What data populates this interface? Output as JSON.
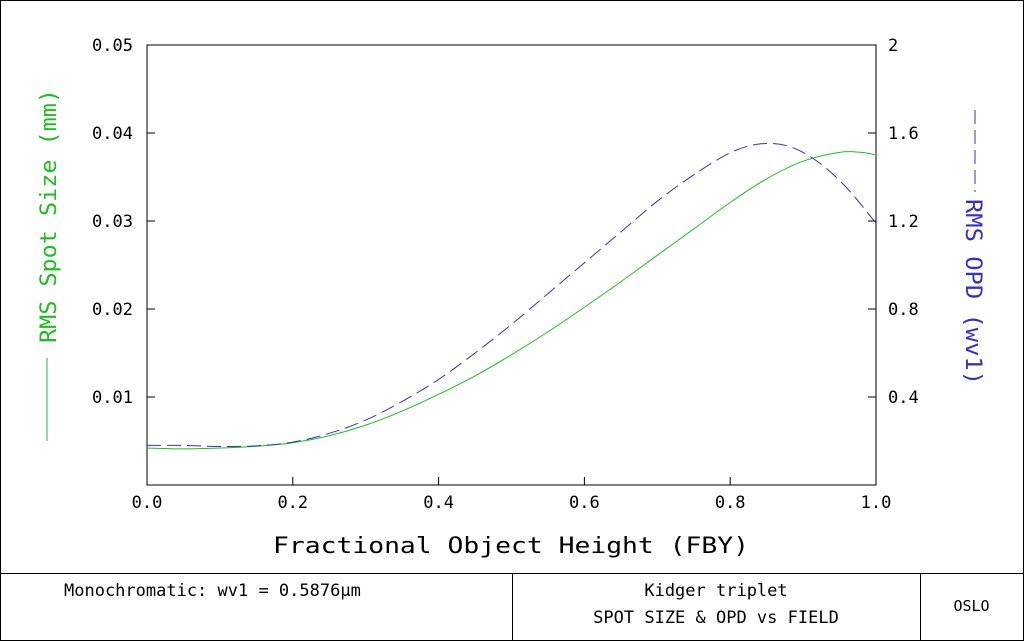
{
  "chart_data": {
    "type": "line",
    "title": "",
    "xlabel": "Fractional Object Height (FBY)",
    "xlim": [
      0.0,
      1.0
    ],
    "x_ticks": [
      "0.0",
      "0.2",
      "0.4",
      "0.6",
      "0.8",
      "1.0"
    ],
    "ylabel_left": "RMS Spot Size (mm)",
    "ylim_left": [
      0,
      0.05
    ],
    "y_ticks_left": [
      "0.01",
      "0.02",
      "0.03",
      "0.04",
      "0.05"
    ],
    "ylabel_right": "RMS OPD (wv1)",
    "ylim_right": [
      0,
      2
    ],
    "y_ticks_right": [
      "0.4",
      "0.8",
      "1.2",
      "1.6",
      "2"
    ],
    "grid": false,
    "series": [
      {
        "name": "RMS Spot Size (mm)",
        "axis": "left",
        "color": "#22bb22",
        "style": "solid",
        "x": [
          0.0,
          0.05,
          0.1,
          0.15,
          0.2,
          0.25,
          0.3,
          0.35,
          0.4,
          0.45,
          0.5,
          0.55,
          0.6,
          0.65,
          0.7,
          0.75,
          0.8,
          0.85,
          0.9,
          0.95,
          0.98,
          1.0
        ],
        "y": [
          0.0042,
          0.0041,
          0.0042,
          0.0044,
          0.0048,
          0.0056,
          0.0068,
          0.0084,
          0.0103,
          0.0124,
          0.0148,
          0.0174,
          0.0202,
          0.0231,
          0.0261,
          0.0291,
          0.0321,
          0.0348,
          0.0368,
          0.0378,
          0.0378,
          0.0375
        ]
      },
      {
        "name": "RMS OPD (wv1)",
        "axis": "right",
        "color": "#3333bb",
        "style": "dashed",
        "x": [
          0.0,
          0.05,
          0.1,
          0.15,
          0.2,
          0.25,
          0.3,
          0.35,
          0.4,
          0.45,
          0.5,
          0.55,
          0.6,
          0.65,
          0.7,
          0.75,
          0.8,
          0.84,
          0.88,
          0.92,
          0.96,
          1.0
        ],
        "y": [
          0.18,
          0.18,
          0.175,
          0.178,
          0.195,
          0.235,
          0.295,
          0.38,
          0.48,
          0.6,
          0.73,
          0.87,
          1.01,
          1.15,
          1.29,
          1.41,
          1.51,
          1.55,
          1.54,
          1.47,
          1.35,
          1.19
        ]
      }
    ]
  },
  "footer": {
    "left": "Monochromatic: wv1 = 0.5876μm",
    "center_line1": "Kidger triplet",
    "center_line2": "SPOT SIZE & OPD vs FIELD",
    "right": "OSLO"
  }
}
